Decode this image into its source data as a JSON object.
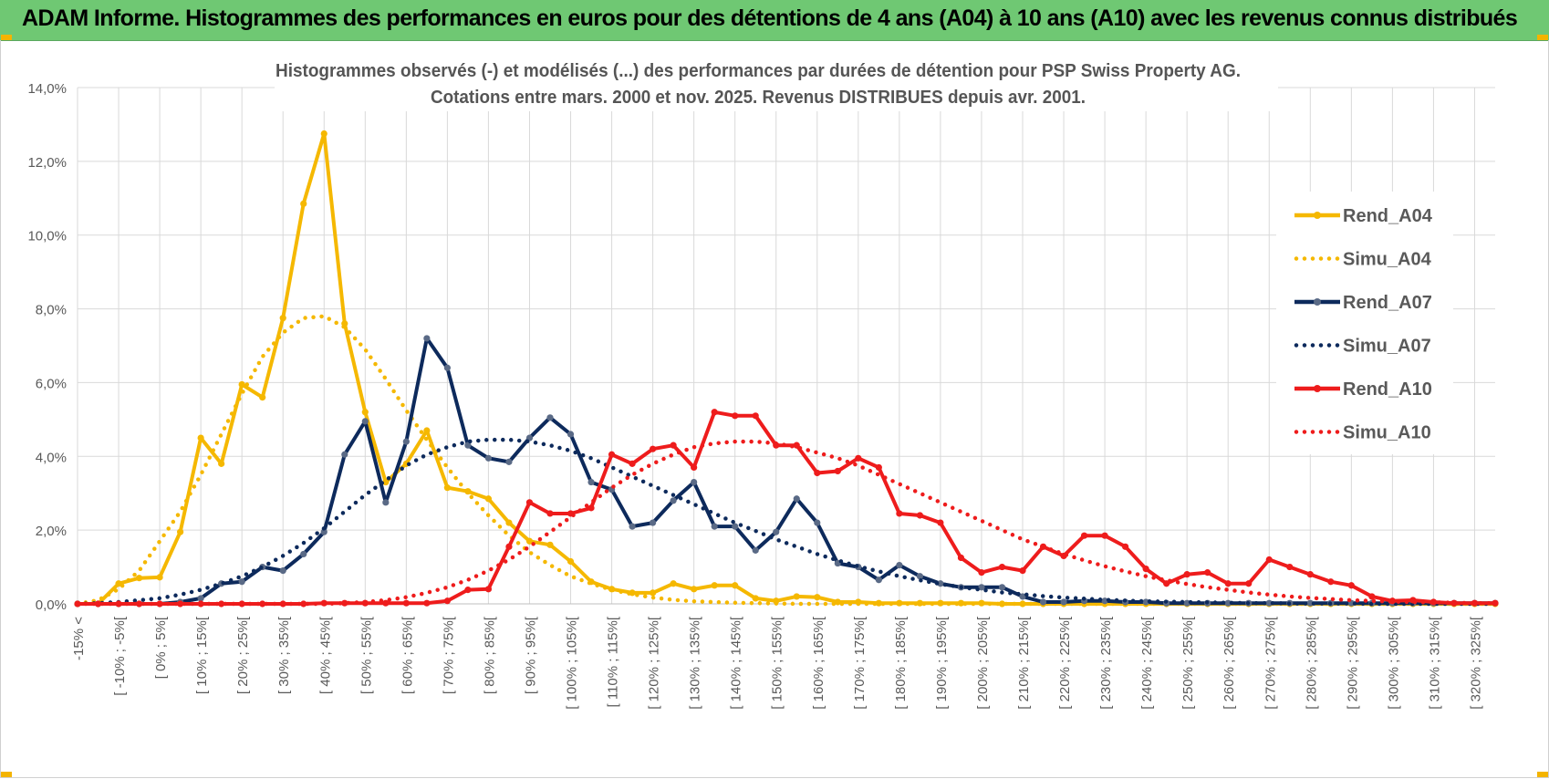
{
  "header": {
    "title": "ADAM Informe. Histogrammes des performances en euros pour des détentions de 4 ans (A04) à 10 ans (A10) avec les revenus connus distribués"
  },
  "chart_data": {
    "type": "line",
    "title": "Histogrammes observés (-) et modélisés (...) des performances par durées de détention pour PSP Swiss Property AG.",
    "subtitle": "Cotations entre mars. 2000 et nov. 2025. Revenus DISTRIBUES depuis avr. 2001.",
    "ylim": [
      0,
      14
    ],
    "y_ticks": [
      "0,0%",
      "2,0%",
      "4,0%",
      "6,0%",
      "8,0%",
      "10,0%",
      "12,0%",
      "14,0%"
    ],
    "grid": true,
    "legend_position": "right",
    "categories": [
      "-15% <",
      "[ -15% ; -10%[",
      "[ -10% ; -5%[",
      "[ -5% ; 0%[",
      "[ 0% ; 5%[",
      "[ 5% ; 10%[",
      "[ 10% ; 15%[",
      "[ 15% ; 20%[",
      "[ 20% ; 25%[",
      "[ 25% ; 30%[",
      "[ 30% ; 35%[",
      "[ 35% ; 40%[",
      "[ 40% ; 45%[",
      "[ 45% ; 50%[",
      "[ 50% ; 55%[",
      "[ 55% ; 60%[",
      "[ 60% ; 65%[",
      "[ 65% ; 70%[",
      "[ 70% ; 75%[",
      "[ 75% ; 80%[",
      "[ 80% ; 85%[",
      "[ 85% ; 90%[",
      "[ 90% ; 95%[",
      "[ 95% ; 100%[",
      "[ 100% ; 105%[",
      "[ 105% ; 110%[",
      "[ 110% ; 115%[",
      "[ 115% ; 120%[",
      "[ 120% ; 125%[",
      "[ 125% ; 130%[",
      "[ 130% ; 135%[",
      "[ 135% ; 140%[",
      "[ 140% ; 145%[",
      "[ 145% ; 150%[",
      "[ 150% ; 155%[",
      "[ 155% ; 160%[",
      "[ 160% ; 165%[",
      "[ 165% ; 170%[",
      "[ 170% ; 175%[",
      "[ 175% ; 180%[",
      "[ 180% ; 185%[",
      "[ 185% ; 190%[",
      "[ 190% ; 195%[",
      "[ 195% ; 200%[",
      "[ 200% ; 205%[",
      "[ 205% ; 210%[",
      "[ 210% ; 215%[",
      "[ 215% ; 220%[",
      "[ 220% ; 225%[",
      "[ 225% ; 230%[",
      "[ 230% ; 235%[",
      "[ 235% ; 240%[",
      "[ 240% ; 245%[",
      "[ 245% ; 250%[",
      "[ 250% ; 255%[",
      "[ 255% ; 260%[",
      "[ 260% ; 265%[",
      "[ 265% ; 270%[",
      "[ 270% ; 275%[",
      "[ 275% ; 280%[",
      "[ 280% ; 285%[",
      "[ 285% ; 290%[",
      "[ 290% ; 295%[",
      "[ 295% ; 300%[",
      "[ 300% ; 305%[",
      "[ 305% ; 310%[",
      "[ 310% ; 315%[",
      "[ 315% ; 320%[",
      "[ 320% ; 325%[",
      "[ 325% ; 330%["
    ],
    "x_tick_labels": [
      "-15% <",
      "[ -10% ; -5%[",
      "[ 0% ; 5%[",
      "[ 10% ; 15%[",
      "[ 20% ; 25%[",
      "[ 30% ; 35%[",
      "[ 40% ; 45%[",
      "[ 50% ; 55%[",
      "[ 60% ; 65%[",
      "[ 70% ; 75%[",
      "[ 80% ; 85%[",
      "[ 90% ; 95%[",
      "[ 100% ; 105%[",
      "[ 110% ; 115%[",
      "[ 120% ; 125%[",
      "[ 130% ; 135%[",
      "[ 140% ; 145%[",
      "[ 150% ; 155%[",
      "[ 160% ; 165%[",
      "[ 170% ; 175%[",
      "[ 180% ; 185%[",
      "[ 190% ; 195%[",
      "[ 200% ; 205%[",
      "[ 210% ; 215%[",
      "[ 220% ; 225%[",
      "[ 230% ; 235%[",
      "[ 240% ; 245%[",
      "[ 250% ; 255%[",
      "[ 260% ; 265%[",
      "[ 270% ; 275%[",
      "[ 280% ; 285%[",
      "[ 290% ; 295%[",
      "[ 300% ; 305%[",
      "[ 310% ; 315%[",
      "[ 320% ; 325%["
    ],
    "series": [
      {
        "name": "Rend_A04",
        "style": "solid",
        "color": "#f5b800",
        "values": [
          0,
          0,
          0.55,
          0.7,
          0.72,
          1.95,
          4.5,
          3.8,
          5.95,
          5.6,
          7.75,
          10.85,
          12.75,
          7.6,
          5.2,
          3.3,
          3.8,
          4.7,
          3.15,
          3.05,
          2.85,
          2.2,
          1.7,
          1.6,
          1.15,
          0.6,
          0.4,
          0.3,
          0.3,
          0.55,
          0.4,
          0.5,
          0.5,
          0.15,
          0.08,
          0.2,
          0.18,
          0.05,
          0.05,
          0.02,
          0.02,
          0.02,
          0.02,
          0.02,
          0.02,
          0,
          0,
          0,
          0,
          0,
          0,
          0,
          0,
          0,
          0,
          0,
          0,
          0,
          0,
          0,
          0,
          0,
          0,
          0,
          0,
          0,
          0,
          0,
          0,
          0
        ]
      },
      {
        "name": "Simu_A04",
        "style": "dotted",
        "color": "#f5b800",
        "values": [
          0,
          0.1,
          0.4,
          0.9,
          1.7,
          2.5,
          3.5,
          4.6,
          5.7,
          6.7,
          7.35,
          7.75,
          7.8,
          7.5,
          6.9,
          6.1,
          5.25,
          4.45,
          3.7,
          3.0,
          2.4,
          1.85,
          1.4,
          1.05,
          0.75,
          0.55,
          0.38,
          0.26,
          0.17,
          0.11,
          0.07,
          0.05,
          0.03,
          0.02,
          0.01,
          0,
          0,
          0,
          0,
          0,
          0,
          0,
          0,
          0,
          0,
          0,
          0,
          0,
          0,
          0,
          0,
          0,
          0,
          0,
          0,
          0,
          0,
          0,
          0,
          0,
          0,
          0,
          0,
          0,
          0,
          0,
          0,
          0,
          0,
          0
        ]
      },
      {
        "name": "Rend_A07",
        "style": "solid",
        "color": "#0d2a5c",
        "values": [
          0,
          0,
          0,
          0,
          0,
          0.05,
          0.15,
          0.55,
          0.6,
          1.0,
          0.9,
          1.35,
          1.95,
          4.05,
          4.95,
          2.75,
          4.4,
          7.2,
          6.4,
          4.3,
          3.95,
          3.85,
          4.5,
          5.05,
          4.6,
          3.3,
          3.1,
          2.1,
          2.2,
          2.8,
          3.3,
          2.1,
          2.1,
          1.45,
          1.95,
          2.85,
          2.2,
          1.1,
          1.0,
          0.65,
          1.05,
          0.75,
          0.55,
          0.45,
          0.45,
          0.45,
          0.2,
          0.05,
          0.05,
          0.08,
          0.08,
          0.05,
          0.05,
          0.02,
          0.02,
          0.02,
          0.02,
          0.02,
          0.02,
          0.02,
          0.02,
          0.02,
          0.02,
          0.02,
          0.02,
          0.02,
          0.02,
          0.02,
          0.02,
          0.02
        ]
      },
      {
        "name": "Simu_A07",
        "style": "dotted",
        "color": "#0d2a5c",
        "values": [
          0,
          0.02,
          0.05,
          0.1,
          0.15,
          0.25,
          0.38,
          0.55,
          0.75,
          1.0,
          1.3,
          1.65,
          2.05,
          2.5,
          2.95,
          3.35,
          3.75,
          4.05,
          4.25,
          4.4,
          4.45,
          4.45,
          4.4,
          4.3,
          4.15,
          3.95,
          3.7,
          3.45,
          3.2,
          2.95,
          2.7,
          2.45,
          2.2,
          1.98,
          1.75,
          1.55,
          1.35,
          1.18,
          1.02,
          0.88,
          0.75,
          0.64,
          0.54,
          0.45,
          0.38,
          0.31,
          0.26,
          0.21,
          0.17,
          0.14,
          0.11,
          0.09,
          0.07,
          0.06,
          0.05,
          0.04,
          0.03,
          0.02,
          0.02,
          0.01,
          0.01,
          0.01,
          0.01,
          0,
          0,
          0,
          0,
          0,
          0,
          0
        ]
      },
      {
        "name": "Rend_A10",
        "style": "solid",
        "color": "#ee1c1c",
        "values": [
          0,
          0,
          0,
          0,
          0,
          0,
          0,
          0,
          0,
          0,
          0,
          0,
          0.02,
          0.02,
          0.02,
          0.02,
          0.02,
          0.02,
          0.08,
          0.38,
          0.4,
          1.55,
          2.75,
          2.45,
          2.45,
          2.6,
          4.05,
          3.8,
          4.2,
          4.3,
          3.7,
          5.2,
          5.1,
          5.1,
          4.3,
          4.3,
          3.55,
          3.6,
          3.95,
          3.7,
          2.45,
          2.4,
          2.2,
          1.25,
          0.85,
          1.0,
          0.9,
          1.55,
          1.3,
          1.85,
          1.85,
          1.55,
          0.95,
          0.55,
          0.8,
          0.85,
          0.55,
          0.55,
          1.2,
          1.0,
          0.8,
          0.6,
          0.5,
          0.2,
          0.08,
          0.1,
          0.05,
          0.02,
          0.02,
          0.02
        ]
      },
      {
        "name": "Simu_A10",
        "style": "dotted",
        "color": "#ee1c1c",
        "values": [
          0,
          0,
          0,
          0,
          0,
          0,
          0,
          0,
          0,
          0,
          0,
          0,
          0,
          0.02,
          0.05,
          0.1,
          0.18,
          0.3,
          0.45,
          0.65,
          0.9,
          1.2,
          1.55,
          1.95,
          2.35,
          2.75,
          3.15,
          3.5,
          3.8,
          4.05,
          4.25,
          4.35,
          4.4,
          4.4,
          4.35,
          4.25,
          4.1,
          3.95,
          3.75,
          3.5,
          3.25,
          3.0,
          2.75,
          2.5,
          2.25,
          2.0,
          1.75,
          1.55,
          1.35,
          1.18,
          1.02,
          0.88,
          0.75,
          0.64,
          0.54,
          0.45,
          0.38,
          0.31,
          0.25,
          0.2,
          0.16,
          0.13,
          0.1,
          0.08,
          0.06,
          0.05,
          0.04,
          0.03,
          0.02,
          0.02
        ]
      }
    ]
  }
}
